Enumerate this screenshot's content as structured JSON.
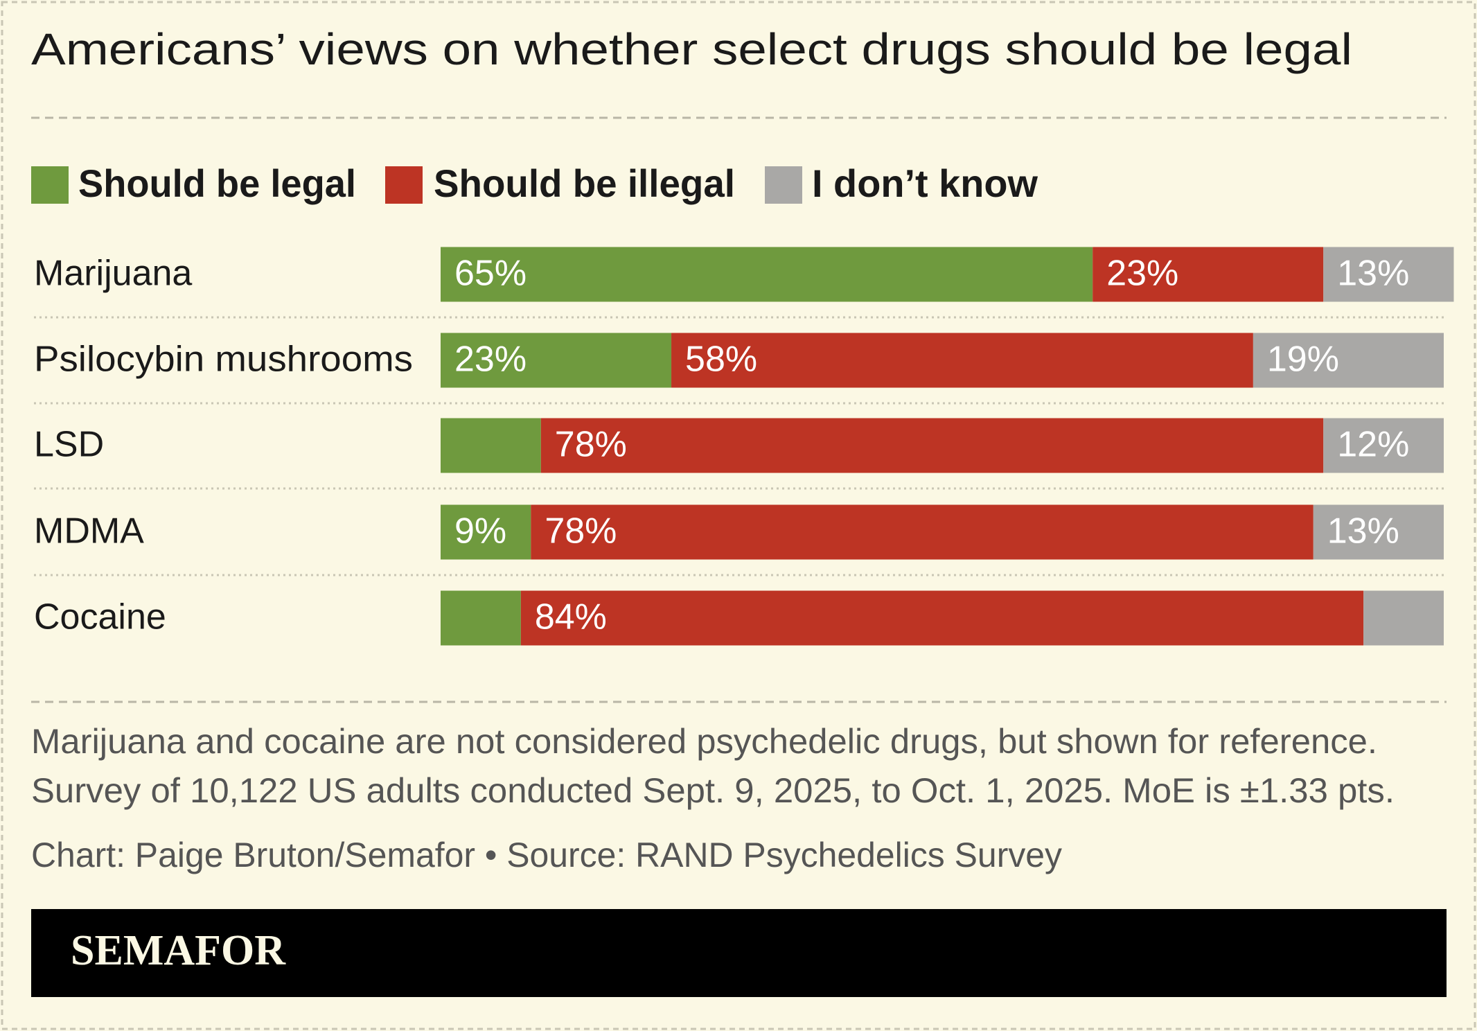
{
  "chart_data": {
    "type": "stacked-bar-horizontal",
    "title": "Americans’ views on whether select drugs should be legal",
    "categories": [
      "Marijuana",
      "Psilocybin mushrooms",
      "LSD",
      "MDMA",
      "Cocaine"
    ],
    "series": [
      {
        "name": "Should be legal",
        "color": "#6f9a3e",
        "values": [
          65,
          23,
          10,
          9,
          8
        ],
        "value_labels": [
          "65%",
          "23%",
          null,
          "9%",
          null
        ]
      },
      {
        "name": "Should be illegal",
        "color": "#bd3424",
        "values": [
          23,
          58,
          78,
          78,
          84
        ],
        "value_labels": [
          "23%",
          "58%",
          "78%",
          "78%",
          "84%"
        ]
      },
      {
        "name": "I don’t know",
        "color": "#a9a8a6",
        "values": [
          13,
          19,
          12,
          13,
          8
        ],
        "value_labels": [
          "13%",
          "19%",
          "12%",
          "13%",
          null
        ]
      }
    ],
    "xlim": [
      0,
      100
    ],
    "notes": [
      "Marijuana and cocaine are not considered psychedelic drugs, but shown for reference.",
      "Survey of 10,122 US adults conducted Sept. 9, 2025, to Oct. 1, 2025. MoE is ±1.33 pts."
    ],
    "credit": "Chart: Paige Bruton/Semafor • Source: RAND Psychedelics Survey",
    "brand": "SEMAFOR"
  }
}
